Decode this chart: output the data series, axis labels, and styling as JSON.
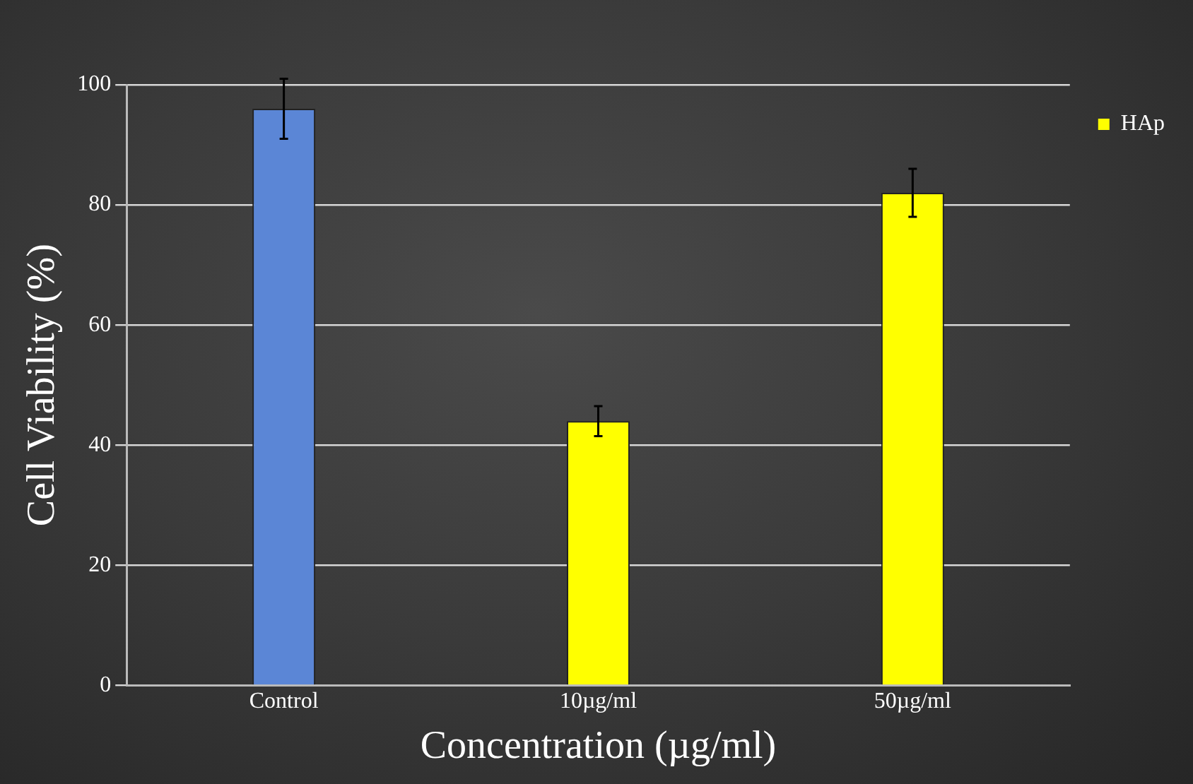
{
  "chart_data": {
    "type": "bar",
    "xlabel": "Concentration (µg/ml)",
    "ylabel": "Cell Viability (%)",
    "categories": [
      "Control",
      "10µg/ml",
      "50µg/ml"
    ],
    "series": [
      {
        "name": "HAp",
        "color": "#ffff00",
        "colors": [
          "#5b86d6",
          "#ffff00",
          "#ffff00"
        ],
        "values": [
          96,
          44,
          82
        ],
        "errors": [
          5,
          2.5,
          4
        ]
      }
    ],
    "ylim": [
      0,
      100
    ],
    "yticks": [
      0,
      20,
      40,
      60,
      80,
      100
    ],
    "grid": "y",
    "legend": "top right"
  }
}
